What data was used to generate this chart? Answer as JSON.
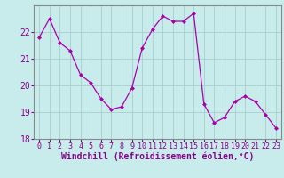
{
  "x": [
    0,
    1,
    2,
    3,
    4,
    5,
    6,
    7,
    8,
    9,
    10,
    11,
    12,
    13,
    14,
    15,
    16,
    17,
    18,
    19,
    20,
    21,
    22,
    23
  ],
  "y": [
    21.8,
    22.5,
    21.6,
    21.3,
    20.4,
    20.1,
    19.5,
    19.1,
    19.2,
    19.9,
    21.4,
    22.1,
    22.6,
    22.4,
    22.4,
    22.7,
    19.3,
    18.6,
    18.8,
    19.4,
    19.6,
    19.4,
    18.9,
    18.4
  ],
  "line_color": "#aa00aa",
  "marker": "D",
  "marker_size": 2,
  "bg_color": "#c8ecec",
  "grid_color": "#aacccc",
  "xlabel": "Windchill (Refroidissement éolien,°C)",
  "xlabel_fontsize": 7,
  "tick_fontsize": 6,
  "ylim": [
    18,
    23
  ],
  "xlim": [
    -0.5,
    23.5
  ],
  "yticks": [
    18,
    19,
    20,
    21,
    22
  ],
  "xticks": [
    0,
    1,
    2,
    3,
    4,
    5,
    6,
    7,
    8,
    9,
    10,
    11,
    12,
    13,
    14,
    15,
    16,
    17,
    18,
    19,
    20,
    21,
    22,
    23
  ],
  "spine_color": "#888888",
  "text_color": "#880088"
}
